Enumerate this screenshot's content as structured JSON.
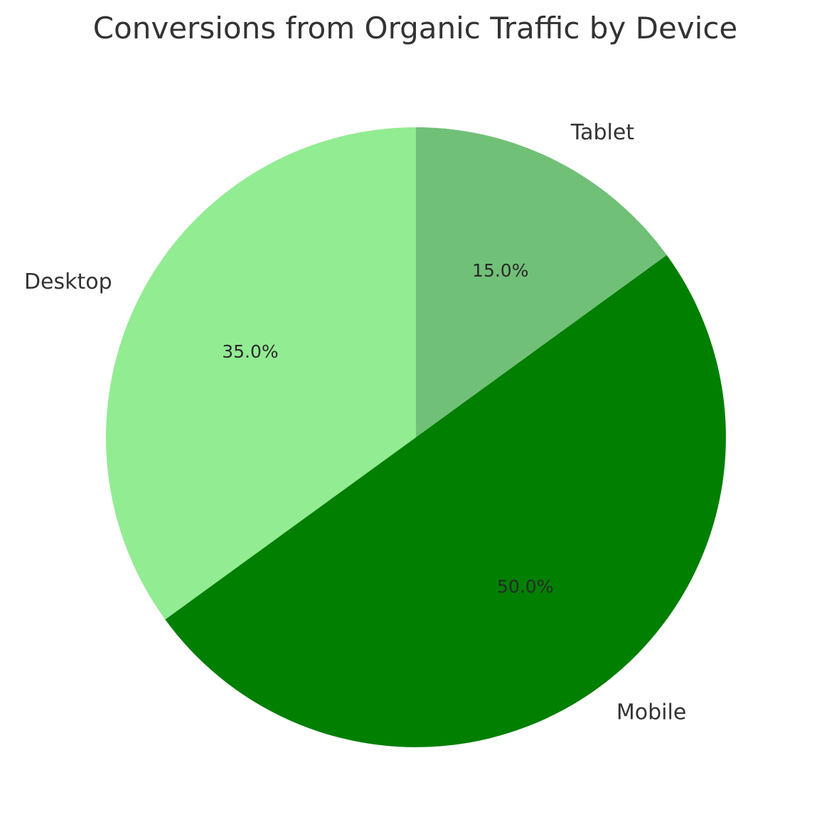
{
  "chart_data": {
    "type": "pie",
    "title": "Conversions from Organic Traffic by Device",
    "categories": [
      "Tablet",
      "Mobile",
      "Desktop"
    ],
    "values": [
      15.0,
      50.0,
      35.0
    ],
    "percent_labels": [
      "15.0%",
      "50.0%",
      "35.0%"
    ],
    "colors": [
      "#71c077",
      "#007f00",
      "#92ec92"
    ],
    "start_angle_deg": 90,
    "direction": "clockwise",
    "legend": "none"
  }
}
